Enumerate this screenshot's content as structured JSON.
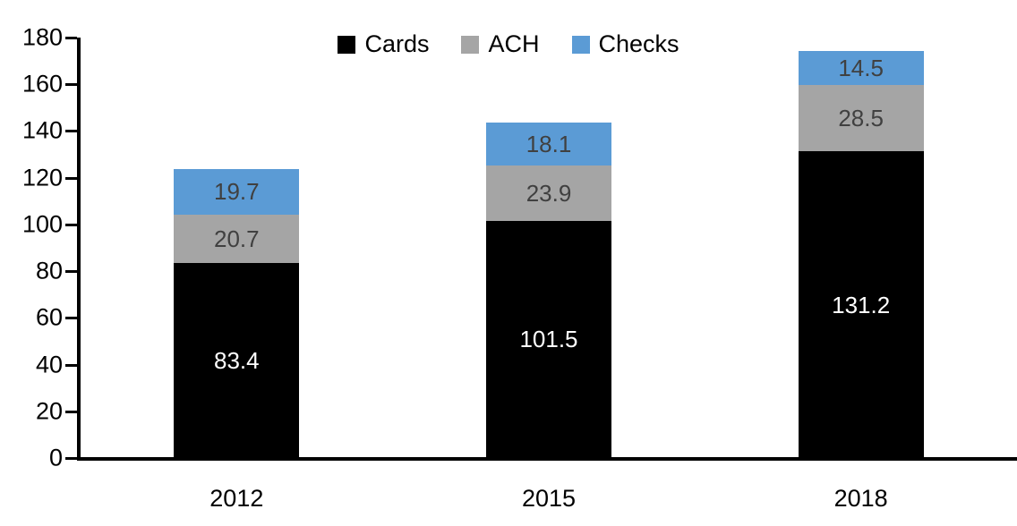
{
  "chart_data": {
    "type": "bar",
    "stacked": true,
    "title": "",
    "categories": [
      "2012",
      "2015",
      "2018"
    ],
    "series": [
      {
        "name": "Cards",
        "values": [
          83.4,
          101.5,
          131.2
        ],
        "color": "#000000",
        "label_color": "#FFFFFF"
      },
      {
        "name": "ACH",
        "values": [
          20.7,
          23.9,
          28.5
        ],
        "color": "#A5A5A5",
        "label_color": "#404040"
      },
      {
        "name": "Checks",
        "values": [
          19.7,
          18.1,
          14.5
        ],
        "color": "#5B9BD5",
        "label_color": "#404040"
      }
    ],
    "ylim": [
      0,
      180
    ],
    "ytick_step": 20,
    "ytick_labels": [
      "0",
      "20",
      "40",
      "60",
      "80",
      "100",
      "120",
      "140",
      "160",
      "180"
    ],
    "xtick_labels": [
      "2012",
      "2015",
      "2018"
    ],
    "grid": false,
    "value_label_decimals": 1,
    "legend": {
      "position": "top-center",
      "entries": [
        "Cards",
        "ACH",
        "Checks"
      ]
    }
  },
  "colors": {
    "axis": "#000000",
    "background": "#FFFFFF"
  }
}
